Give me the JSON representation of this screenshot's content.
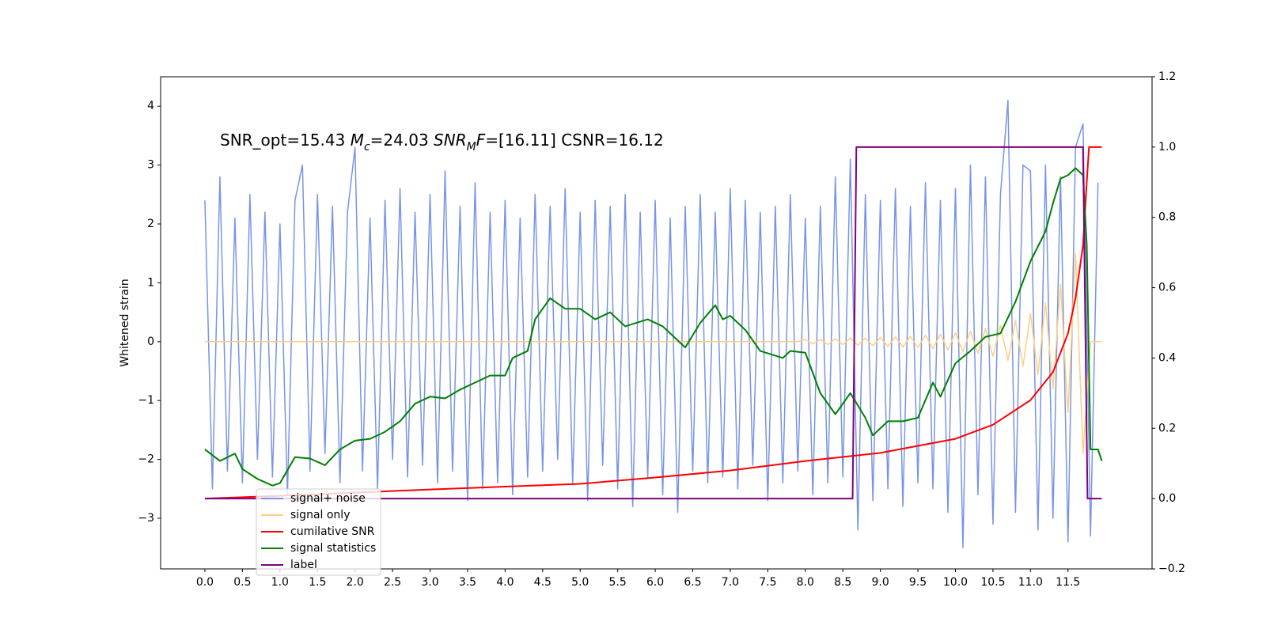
{
  "chart_data": {
    "type": "line",
    "annotation_parts": [
      {
        "text": "SNR_opt=15.43 "
      },
      {
        "text": "M",
        "italic": true
      },
      {
        "text": "c",
        "italic": true,
        "sub": true
      },
      {
        "text": "=24.03  "
      },
      {
        "text": "SNR",
        "italic": true
      },
      {
        "text": "M",
        "italic": true,
        "sub": true
      },
      {
        "text": "F",
        "italic": true
      },
      {
        "text": "=[16.11] CSNR=16.12"
      }
    ],
    "ylabel": "Whitened strain",
    "xlim": [
      -0.59,
      12.62
    ],
    "ylim": [
      -3.86,
      4.5
    ],
    "y2lim": [
      -0.2,
      1.2
    ],
    "xticks": [
      {
        "value": 0,
        "label": "0.0"
      },
      0.5,
      {
        "value": 1,
        "label": "1.0"
      },
      1.5,
      {
        "value": 2,
        "label": "2.0"
      },
      2.5,
      {
        "value": 3,
        "label": "3.0"
      },
      3.5,
      {
        "value": 4,
        "label": "4.0"
      },
      4.5,
      {
        "value": 5,
        "label": "5.0"
      },
      5.5,
      {
        "value": 6,
        "label": "6.0"
      },
      6.5,
      {
        "value": 7,
        "label": "7.0"
      },
      7.5,
      {
        "value": 8,
        "label": "8.0"
      },
      8.5,
      {
        "value": 9,
        "label": "9.0"
      },
      9.5,
      {
        "value": 10,
        "label": "10.0"
      },
      10.5,
      {
        "value": 11,
        "label": "11.0"
      },
      11.5
    ],
    "yticks": [
      {
        "value": -3,
        "label": "−3"
      },
      {
        "value": -2,
        "label": "−2"
      },
      {
        "value": -1,
        "label": "−1"
      },
      0,
      1,
      2,
      3,
      4
    ],
    "y2ticks": [
      {
        "value": -0.2,
        "label": "−0.2"
      },
      {
        "value": 0,
        "label": "0.0"
      },
      0.2,
      0.4,
      0.6,
      0.8,
      {
        "value": 1,
        "label": "1.0"
      },
      1.2
    ],
    "legend": "lower left",
    "series": [
      {
        "name": "signal+ noise",
        "color": "#7894e6",
        "axis": "y",
        "x": [
          0,
          0.1,
          0.2,
          0.3,
          0.4,
          0.5,
          0.6,
          0.7,
          0.8,
          0.9,
          1,
          1.1,
          1.2,
          1.3,
          1.4,
          1.5,
          1.6,
          1.7,
          1.8,
          1.9,
          2,
          2.1,
          2.2,
          2.3,
          2.4,
          2.5,
          2.6,
          2.7,
          2.8,
          2.9,
          3,
          3.1,
          3.2,
          3.3,
          3.4,
          3.5,
          3.6,
          3.7,
          3.8,
          3.9,
          4,
          4.1,
          4.2,
          4.3,
          4.4,
          4.5,
          4.6,
          4.7,
          4.8,
          4.9,
          5,
          5.1,
          5.2,
          5.3,
          5.4,
          5.5,
          5.6,
          5.7,
          5.8,
          5.9,
          6,
          6.1,
          6.2,
          6.3,
          6.4,
          6.5,
          6.6,
          6.7,
          6.8,
          6.9,
          7,
          7.1,
          7.2,
          7.3,
          7.4,
          7.5,
          7.6,
          7.7,
          7.8,
          7.9,
          8,
          8.1,
          8.2,
          8.3,
          8.4,
          8.5,
          8.6,
          8.7,
          8.8,
          8.9,
          9,
          9.1,
          9.2,
          9.3,
          9.4,
          9.5,
          9.6,
          9.7,
          9.8,
          9.9,
          10,
          10.1,
          10.2,
          10.3,
          10.4,
          10.5,
          10.6,
          10.7,
          10.8,
          10.9,
          11,
          11.1,
          11.2,
          11.3,
          11.4,
          11.5,
          11.6,
          11.7,
          11.8,
          11.9
        ],
        "values": [
          2.4,
          -2.5,
          2.8,
          -2.2,
          2.1,
          -2.4,
          2.5,
          -2.0,
          2.2,
          -2.3,
          2.0,
          -2.6,
          2.4,
          3.0,
          -2.2,
          2.5,
          -1.9,
          2.3,
          -2.4,
          2.2,
          3.3,
          -2.2,
          2.1,
          -2.5,
          2.4,
          -2.0,
          2.6,
          -2.3,
          2.2,
          -2.1,
          2.5,
          -2.4,
          2.9,
          -2.2,
          2.3,
          -2.7,
          2.7,
          -2.5,
          2.2,
          -2.4,
          2.4,
          -2.6,
          2.1,
          -2.3,
          2.5,
          -2.2,
          2.3,
          -2.0,
          2.6,
          -2.4,
          2.2,
          -2.7,
          2.4,
          -2.1,
          2.3,
          -2.5,
          2.5,
          -2.8,
          2.2,
          -2.3,
          2.4,
          -2.6,
          2.1,
          -2.9,
          2.3,
          -2.2,
          2.5,
          -2.4,
          2.2,
          -2.3,
          2.6,
          -2.5,
          2.4,
          -2.1,
          2.2,
          -2.7,
          2.3,
          -2.4,
          2.5,
          -2.2,
          2.1,
          -2.6,
          2.3,
          -2.4,
          2.8,
          -2.3,
          3.1,
          -3.2,
          2.5,
          -2.7,
          2.4,
          -2.5,
          2.6,
          -2.8,
          2.3,
          -2.4,
          2.7,
          -2.5,
          2.4,
          -2.9,
          2.6,
          -3.5,
          3.0,
          -2.6,
          2.8,
          -3.1,
          2.5,
          4.1,
          -2.9,
          3.0,
          2.9,
          -3.2,
          3.0,
          -3.0,
          2.8,
          -3.4,
          3.3,
          3.7,
          -3.3,
          2.7
        ]
      },
      {
        "name": "signal only",
        "color": "#ffcf80",
        "axis": "y",
        "x": [
          0,
          7.9,
          8,
          8.1,
          8.2,
          8.3,
          8.4,
          8.5,
          8.6,
          8.7,
          8.8,
          8.9,
          9,
          9.1,
          9.2,
          9.3,
          9.4,
          9.5,
          9.6,
          9.7,
          9.8,
          9.9,
          10,
          10.1,
          10.2,
          10.3,
          10.4,
          10.5,
          10.6,
          10.7,
          10.8,
          10.9,
          11,
          11.1,
          11.2,
          11.3,
          11.4,
          11.5,
          11.6,
          11.7,
          11.8,
          11.95
        ],
        "values": [
          0,
          0,
          0.04,
          -0.04,
          0.04,
          -0.05,
          0.05,
          -0.05,
          0.06,
          -0.06,
          0.06,
          -0.07,
          0.07,
          -0.08,
          0.08,
          -0.09,
          0.09,
          -0.1,
          0.11,
          -0.12,
          0.13,
          -0.14,
          0.15,
          -0.17,
          0.18,
          -0.2,
          0.22,
          -0.25,
          0.28,
          -0.32,
          0.36,
          -0.42,
          0.48,
          -0.56,
          0.66,
          -0.8,
          0.98,
          -1.2,
          1.5,
          -1.9,
          0,
          0
        ]
      },
      {
        "name": "cumilative SNR",
        "color": "#ff0000",
        "axis": "y2",
        "x": [
          0,
          1,
          2,
          3,
          4,
          5,
          6,
          7,
          8,
          9,
          9.5,
          10,
          10.5,
          11,
          11.3,
          11.5,
          11.6,
          11.7,
          11.75,
          11.78,
          11.95
        ],
        "values": [
          0,
          0.008,
          0.017,
          0.026,
          0.034,
          0.042,
          0.06,
          0.08,
          0.107,
          0.13,
          0.15,
          0.17,
          0.21,
          0.28,
          0.36,
          0.47,
          0.57,
          0.72,
          0.9,
          1.0,
          1.0
        ]
      },
      {
        "name": "signal statistics",
        "color": "#008000",
        "axis": "y2",
        "x": [
          0,
          0.2,
          0.4,
          0.5,
          0.7,
          0.9,
          1,
          1.2,
          1.4,
          1.6,
          1.8,
          2,
          2.2,
          2.4,
          2.6,
          2.8,
          3,
          3.2,
          3.4,
          3.6,
          3.8,
          4,
          4.1,
          4.3,
          4.4,
          4.6,
          4.8,
          5,
          5.2,
          5.4,
          5.6,
          5.9,
          6.1,
          6.3,
          6.4,
          6.6,
          6.8,
          6.9,
          7,
          7.2,
          7.4,
          7.7,
          7.8,
          8,
          8.2,
          8.4,
          8.6,
          8.8,
          8.9,
          9.1,
          9.3,
          9.5,
          9.7,
          9.8,
          10,
          10.2,
          10.4,
          10.6,
          10.8,
          11,
          11.2,
          11.3,
          11.4,
          11.5,
          11.6,
          11.7,
          11.75,
          11.8,
          11.9,
          11.95
        ],
        "values": [
          0.14,
          0.107,
          0.128,
          0.084,
          0.056,
          0.037,
          0.044,
          0.118,
          0.114,
          0.095,
          0.14,
          0.165,
          0.17,
          0.19,
          0.22,
          0.27,
          0.29,
          0.285,
          0.31,
          0.33,
          0.35,
          0.35,
          0.4,
          0.42,
          0.51,
          0.57,
          0.54,
          0.54,
          0.51,
          0.53,
          0.49,
          0.51,
          0.49,
          0.45,
          0.43,
          0.5,
          0.55,
          0.51,
          0.52,
          0.48,
          0.42,
          0.4,
          0.42,
          0.415,
          0.3,
          0.24,
          0.3,
          0.23,
          0.18,
          0.22,
          0.22,
          0.23,
          0.33,
          0.29,
          0.385,
          0.42,
          0.46,
          0.47,
          0.56,
          0.675,
          0.76,
          0.84,
          0.91,
          0.92,
          0.94,
          0.92,
          0.72,
          0.14,
          0.14,
          0.107
        ]
      },
      {
        "name": "label",
        "color": "#800080",
        "axis": "y2",
        "x": [
          0,
          8.63,
          8.68,
          11.7,
          11.76,
          11.95
        ],
        "values": [
          0,
          0,
          1,
          1,
          0,
          0
        ]
      }
    ]
  }
}
